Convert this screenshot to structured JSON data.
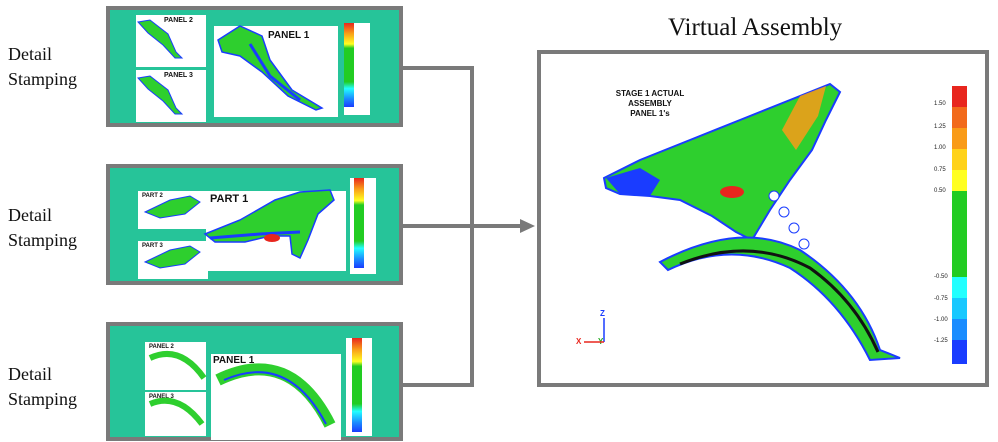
{
  "labels": {
    "detail_stamping_1": [
      "Detail",
      "Stamping"
    ],
    "detail_stamping_2": [
      "Detail",
      "Stamping"
    ],
    "detail_stamping_3": [
      "Detail",
      "Stamping"
    ]
  },
  "row1": {
    "panel_a": "PANEL 2",
    "panel_b": "PANEL 3",
    "main": "PANEL 1"
  },
  "row2": {
    "panel_a": "PART 2",
    "panel_b": "PART 3",
    "main": "PART 1"
  },
  "row3": {
    "panel_a": "PANEL 2",
    "panel_b": "PANEL 3",
    "main": "PANEL 1"
  },
  "virtual_assembly": {
    "title": "Virtual Assembly",
    "stage_text": [
      "STAGE 1 ACTUAL",
      "ASSEMBLY",
      "PANEL 1's"
    ],
    "scale_ticks": [
      "1.50",
      "1.25",
      "1.00",
      "0.75",
      "0.50",
      "-0.50",
      "-0.75",
      "-1.00",
      "-1.25"
    ],
    "axis": {
      "z": "Z",
      "x": "X",
      "y": "Y"
    }
  },
  "colors": {
    "panel_bg": "#26c499",
    "frame": "#7a7a7a",
    "part_green": "#2ecf2e",
    "scale": [
      "#e8261e",
      "#f26a1b",
      "#f99b18",
      "#ffd21a",
      "#ffff22",
      "#22cc22",
      "#22cc22",
      "#22cc22",
      "#22ffff",
      "#18c8ff",
      "#1a8cff",
      "#1a3cff"
    ]
  }
}
